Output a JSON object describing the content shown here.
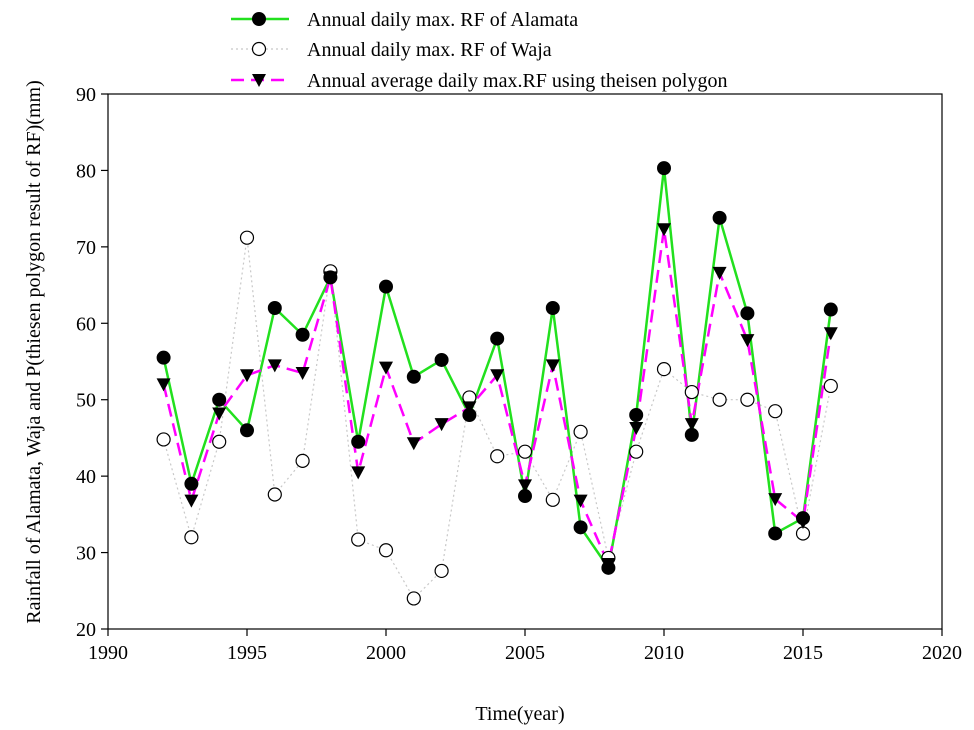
{
  "chart_data": {
    "type": "line",
    "xlabel": "Time(year)",
    "ylabel": "Rainfall of Alamata, Waja and P(thiesen polygon result of RF)(mm)",
    "xlim": [
      1990,
      2020
    ],
    "ylim": [
      20,
      90
    ],
    "xticks": [
      1990,
      1995,
      2000,
      2005,
      2010,
      2015,
      2020
    ],
    "yticks": [
      20,
      30,
      40,
      50,
      60,
      70,
      80,
      90
    ],
    "grid": false,
    "legend_position": "top",
    "x": [
      1992,
      1993,
      1994,
      1995,
      1996,
      1997,
      1998,
      1999,
      2000,
      2001,
      2002,
      2003,
      2004,
      2005,
      2006,
      2007,
      2008,
      2009,
      2010,
      2011,
      2012,
      2013,
      2014,
      2015,
      2016
    ],
    "series": [
      {
        "name": "Annual daily max. RF of Alamata",
        "color": "#22e01e",
        "line_style": "solid",
        "marker": "filled-circle",
        "values": [
          55.5,
          39.0,
          50.0,
          46.0,
          62.0,
          58.5,
          66.0,
          44.5,
          64.8,
          53.0,
          55.2,
          48.0,
          58.0,
          37.4,
          62.0,
          33.3,
          28.0,
          48.0,
          80.3,
          45.4,
          73.8,
          61.3,
          32.5,
          34.5,
          61.8
        ]
      },
      {
        "name": "Annual daily max. RF of Waja",
        "color": "#c8c8c8",
        "line_style": "dotted",
        "marker": "open-circle",
        "values": [
          44.8,
          32.0,
          44.5,
          71.2,
          37.6,
          42.0,
          66.8,
          31.7,
          30.3,
          24.0,
          27.6,
          50.3,
          42.6,
          43.2,
          36.9,
          45.8,
          29.3,
          43.2,
          54.0,
          51.0,
          50.0,
          50.0,
          48.5,
          32.5,
          51.8
        ]
      },
      {
        "name": "Annual average daily max.RF using theisen polygon",
        "color": "#ff00ff",
        "line_style": "dashed",
        "marker": "filled-triangle-down",
        "values": [
          52.0,
          36.8,
          48.2,
          53.2,
          54.5,
          53.5,
          66.0,
          40.5,
          54.2,
          44.3,
          46.8,
          49.0,
          53.2,
          38.8,
          54.5,
          36.8,
          28.5,
          46.3,
          72.3,
          46.8,
          66.6,
          57.8,
          37.0,
          34.0,
          58.7
        ]
      }
    ]
  }
}
